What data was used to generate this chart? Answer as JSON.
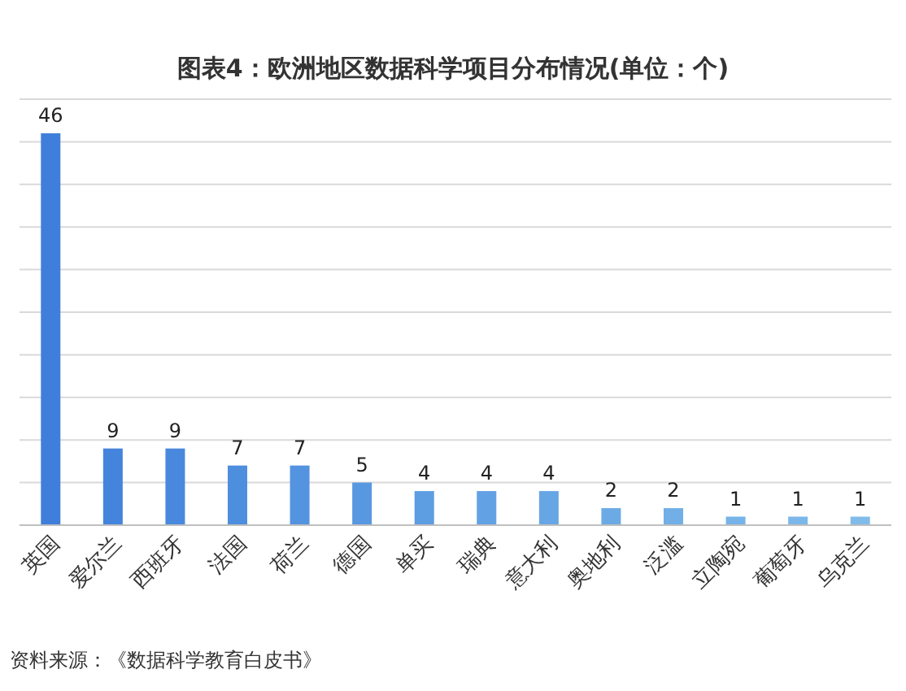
{
  "chart_data": {
    "type": "bar",
    "title": "图表4：欧洲地区数据科学项目分布情况(单位：个)",
    "categories": [
      "英国",
      "爱尔兰",
      "西班牙",
      "法国",
      "荷兰",
      "德国",
      "单买",
      "瑞典",
      "意大利",
      "奥地利",
      "泛滥",
      "立陶宛",
      "葡萄牙",
      "乌克兰"
    ],
    "values": [
      46,
      9,
      9,
      7,
      7,
      5,
      4,
      4,
      4,
      2,
      2,
      1,
      1,
      1
    ],
    "colors": [
      "#3f7fdb",
      "#4484dc",
      "#4989dd",
      "#4e8ede",
      "#5393e0",
      "#5898e1",
      "#5d9de2",
      "#62a1e3",
      "#67a6e4",
      "#6caae5",
      "#71afe6",
      "#76b3e8",
      "#7bb7e9",
      "#80bbea"
    ],
    "ylim": [
      0,
      50
    ],
    "yticks": [
      {
        "value": 0,
        "label": null
      },
      {
        "value": 5,
        "label": null
      },
      {
        "value": 10,
        "label": null
      },
      {
        "value": 15,
        "label": null
      },
      {
        "value": 20,
        "label": null
      },
      {
        "value": 25,
        "label": null
      },
      {
        "value": 30,
        "label": null
      },
      {
        "value": 35,
        "label": null
      },
      {
        "value": 40,
        "label": null
      },
      {
        "value": 45,
        "label": null
      },
      {
        "value": 50,
        "label": null
      }
    ],
    "grid": "y",
    "tick_labels": "x",
    "data_labels": true,
    "annotations": [
      "资料来源：《数据科学教育白皮书》"
    ]
  }
}
